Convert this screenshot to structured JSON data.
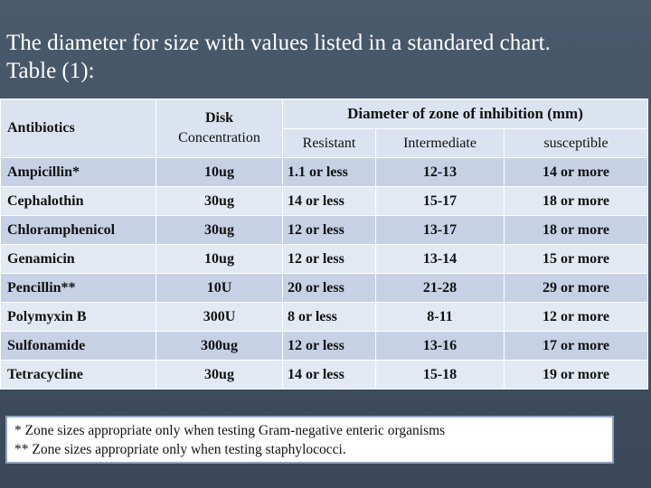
{
  "title": {
    "line1": "The diameter for size with values listed in a standared chart.",
    "line2": "Table (1):"
  },
  "table": {
    "headers": {
      "antibiotics": "Antibiotics",
      "disk_line1": "Disk",
      "disk_line2": "Concentration",
      "zone": "Diameter of zone of inhibition (mm)",
      "resistant": "Resistant",
      "intermediate": "Intermediate",
      "susceptible": "susceptible"
    },
    "rows": [
      {
        "antibiotic": "Ampicillin*",
        "disk": "10ug",
        "resistant": "1.1 or less",
        "intermediate": "12-13",
        "susceptible": "14 or more"
      },
      {
        "antibiotic": "Cephalothin",
        "disk": "30ug",
        "resistant": "14 or less",
        "intermediate": "15-17",
        "susceptible": "18 or more"
      },
      {
        "antibiotic": "Chloramphenicol",
        "disk": "30ug",
        "resistant": "12 or less",
        "intermediate": "13-17",
        "susceptible": "18 or more"
      },
      {
        "antibiotic": "Genamicin",
        "disk": "10ug",
        "resistant": "12 or less",
        "intermediate": "13-14",
        "susceptible": "15 or more"
      },
      {
        "antibiotic": "Pencillin**",
        "disk": "10U",
        "resistant": "20 or less",
        "intermediate": "21-28",
        "susceptible": "29 or more"
      },
      {
        "antibiotic": "Polymyxin B",
        "disk": "300U",
        "resistant": "8 or less",
        "intermediate": "8-11",
        "susceptible": "12 or more"
      },
      {
        "antibiotic": "Sulfonamide",
        "disk": "300ug",
        "resistant": "12 or less",
        "intermediate": "13-16",
        "susceptible": "17 or more"
      },
      {
        "antibiotic": "Tetracycline",
        "disk": "30ug",
        "resistant": "14 or less",
        "intermediate": "15-18",
        "susceptible": "19 or more"
      }
    ]
  },
  "footnote": {
    "line1": "*  Zone sizes appropriate only when testing Gram-negative enteric organisms",
    "line2": "** Zone sizes appropriate only when testing staphylococci."
  }
}
